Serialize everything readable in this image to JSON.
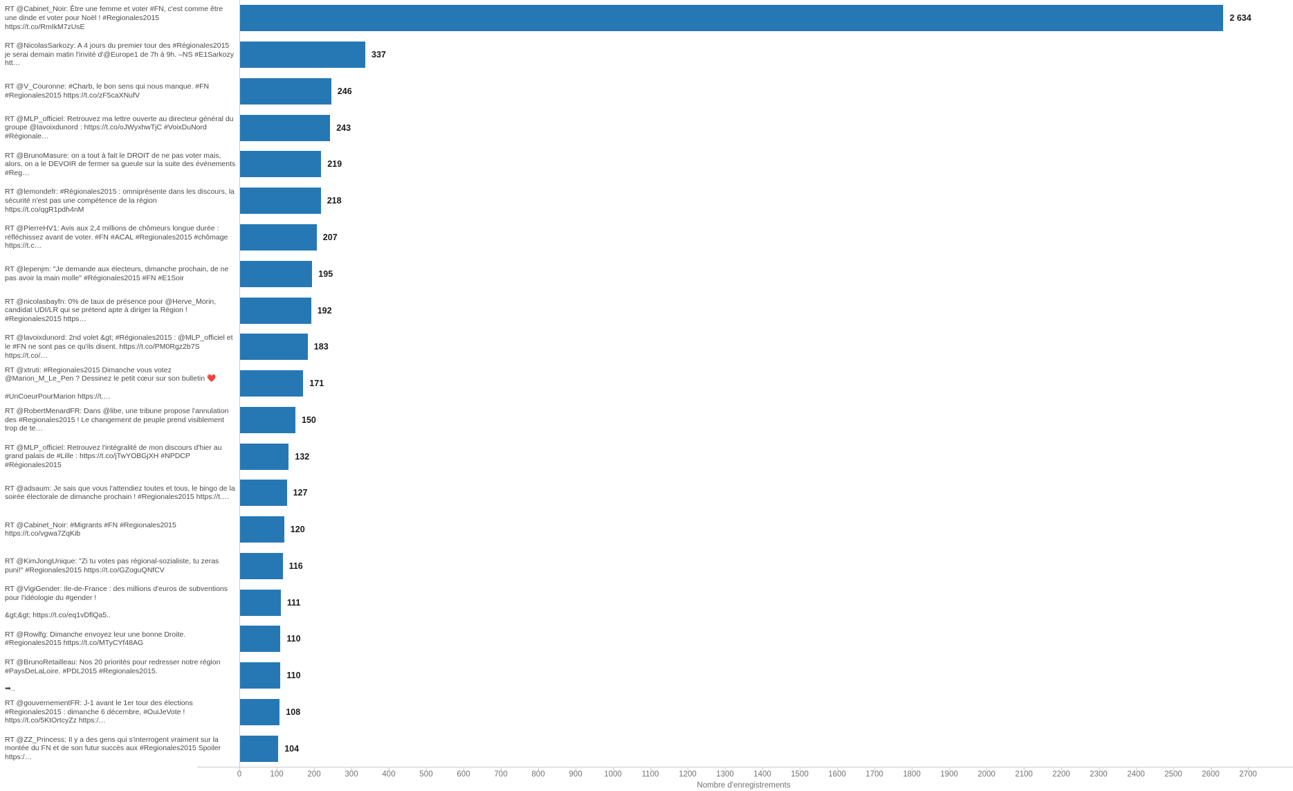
{
  "chart_data": {
    "type": "bar",
    "orientation": "horizontal",
    "xlabel": "Nombre d'enregistrements",
    "xlim": [
      0,
      2700
    ],
    "x_tick_interval": 100,
    "x_ticks": [
      0,
      100,
      200,
      300,
      400,
      500,
      600,
      700,
      800,
      900,
      1000,
      1100,
      1200,
      1300,
      1400,
      1500,
      1600,
      1700,
      1800,
      1900,
      2000,
      2100,
      2200,
      2300,
      2400,
      2500,
      2600,
      2700
    ],
    "bar_color": "#2678b5",
    "grid": "off",
    "legend": "none",
    "rows": [
      {
        "label": "RT @Cabinet_Noir: Être une femme et voter #FN, c'est comme être une dinde et voter pour Noël ! #Regionales2015 https://t.co/RmIkM7zUsE",
        "value": 2634,
        "value_display": "2 634"
      },
      {
        "label": "RT @NicolasSarkozy: A 4 jours du premier tour des #Régionales2015 je serai demain matin l'invité d'@Europe1 de 7h à 9h.  –NS #E1Sarkozy htt…",
        "value": 337,
        "value_display": "337"
      },
      {
        "label": "RT @V_Couronne: #Charb, le bon sens qui nous manque. #FN #Regionales2015 https://t.co/zF5caXNufV",
        "value": 246,
        "value_display": "246"
      },
      {
        "label": "RT @MLP_officiel: Retrouvez ma lettre ouverte au directeur général du groupe @lavoixdunord : https://t.co/oJWyxhwTjC #VoixDuNord #Régionale…",
        "value": 243,
        "value_display": "243"
      },
      {
        "label": "RT @BrunoMasure: on a tout à fait le DROIT de ne pas voter mais, alors, on a le DEVOIR de fermer sa gueule sur la suite des événements #Reg…",
        "value": 219,
        "value_display": "219"
      },
      {
        "label": "RT @lemondefr: #Régionales2015 : omniprésente dans les discours, la sécurité n'est pas une compétence de la région https://t.co/qgR1pdh4nM",
        "value": 218,
        "value_display": "218"
      },
      {
        "label": "RT @PierreHV1: Avis aux 2,4 millions de chômeurs longue durée : réfléchissez avant de voter. #FN #ACAL #Regionales2015 #chômage https://t.c…",
        "value": 207,
        "value_display": "207"
      },
      {
        "label": "RT @lepenjm: \"Je demande aux électeurs, dimanche prochain, de ne pas avoir la main molle\" #Régionales2015 #FN #E1Soir",
        "value": 195,
        "value_display": "195"
      },
      {
        "label": "RT @nicolasbayfn: 0% de taux de présence pour @Herve_Morin, candidat UDI/LR qui se prétend apte à diriger la Région ! #Regionales2015 https…",
        "value": 192,
        "value_display": "192"
      },
      {
        "label": "RT @lavoixdunord: 2nd volet &gt; #Régionales2015 : @MLP_officiel et le #FN ne sont pas ce qu'ils disent. https://t.co/PM0Rgz2b7S https://t.co/…",
        "value": 183,
        "value_display": "183"
      },
      {
        "label": "RT @xtruti: #Regionales2015 Dimanche vous votez @Marion_M_Le_Pen ? Dessinez le petit cœur sur son bulletin ❤️\n\n#UnCoeurPourMarion https://t.…",
        "value": 171,
        "value_display": "171"
      },
      {
        "label": "RT @RobertMenardFR: Dans @libe, une tribune propose l'annulation des #Regionales2015 ! Le changement de peuple prend visiblement trop de te…",
        "value": 150,
        "value_display": "150"
      },
      {
        "label": "RT @MLP_officiel: Retrouvez l'intégralité de mon discours d'hier au grand palais de #Lille : https://t.co/jTwYOBGjXH #NPDCP #Régionales2015",
        "value": 132,
        "value_display": "132"
      },
      {
        "label": "RT @adsaum: Je sais que vous l'attendiez toutes et tous, le bingo de la soirée électorale de dimanche prochain ! #Regionales2015 https://t.…",
        "value": 127,
        "value_display": "127"
      },
      {
        "label": "RT @Cabinet_Noir: #Migrants #FN #Regionales2015 https://t.co/vgwa7ZqKib",
        "value": 120,
        "value_display": "120"
      },
      {
        "label": "RT @KimJongUnique: \"Zi tu votes pas régional-sozialiste, tu zeras puni!\" #Regionales2015 https://t.co/GZoguQNfCV",
        "value": 116,
        "value_display": "116"
      },
      {
        "label": "RT @VigiGender: Ile-de-France : des millions d'euros de subventions pour l'idéologie du #gender !\n\n&gt;&gt; https://t.co/eq1vDflQa5..",
        "value": 111,
        "value_display": "111"
      },
      {
        "label": "RT @Rowlfg: Dimanche envoyez leur une bonne Droite. #Regionales2015 https://t.co/MTyCYf48AG",
        "value": 110,
        "value_display": "110"
      },
      {
        "label": "RT @BrunoRetailleau: Nos 20 priorités pour redresser notre région #PaysDeLaLoire. #PDL2015 #Regionales2015.\n\n➡..",
        "value": 110,
        "value_display": "110"
      },
      {
        "label": "RT @gouvernementFR: J-1 avant le 1er tour des élections #Regionales2015 : dimanche 6 décembre, #OuiJeVote ! https://t.co/5KtOrtcyZz https:/…",
        "value": 108,
        "value_display": "108"
      },
      {
        "label": "RT @ZZ_Princess: Il y a des gens qui s'interrogent vraiment sur la montée du FN et de son futur succès aux #Regionales2015 Spoiler https:/…",
        "value": 104,
        "value_display": "104"
      }
    ]
  }
}
